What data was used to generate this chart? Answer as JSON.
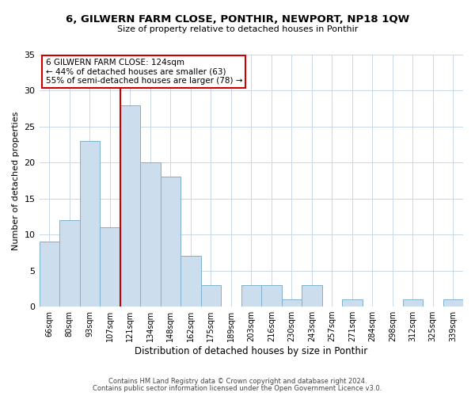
{
  "title": "6, GILWERN FARM CLOSE, PONTHIR, NEWPORT, NP18 1QW",
  "subtitle": "Size of property relative to detached houses in Ponthir",
  "xlabel": "Distribution of detached houses by size in Ponthir",
  "ylabel": "Number of detached properties",
  "bar_labels": [
    "66sqm",
    "80sqm",
    "93sqm",
    "107sqm",
    "121sqm",
    "134sqm",
    "148sqm",
    "162sqm",
    "175sqm",
    "189sqm",
    "203sqm",
    "216sqm",
    "230sqm",
    "243sqm",
    "257sqm",
    "271sqm",
    "284sqm",
    "298sqm",
    "312sqm",
    "325sqm",
    "339sqm"
  ],
  "bar_values": [
    9,
    12,
    23,
    11,
    28,
    20,
    18,
    7,
    3,
    0,
    3,
    3,
    1,
    3,
    0,
    1,
    0,
    0,
    1,
    0,
    1
  ],
  "bar_color": "#ccdded",
  "bar_edge_color": "#7fb0cc",
  "vline_x": 3.5,
  "vline_color": "#cc0000",
  "annotation_text": "6 GILWERN FARM CLOSE: 124sqm\n← 44% of detached houses are smaller (63)\n55% of semi-detached houses are larger (78) →",
  "annotation_box_color": "#ffffff",
  "annotation_box_edge": "#cc0000",
  "ylim": [
    0,
    35
  ],
  "yticks": [
    0,
    5,
    10,
    15,
    20,
    25,
    30,
    35
  ],
  "footer_line1": "Contains HM Land Registry data © Crown copyright and database right 2024.",
  "footer_line2": "Contains public sector information licensed under the Open Government Licence v3.0.",
  "background_color": "#ffffff",
  "grid_color": "#c8d8ea"
}
